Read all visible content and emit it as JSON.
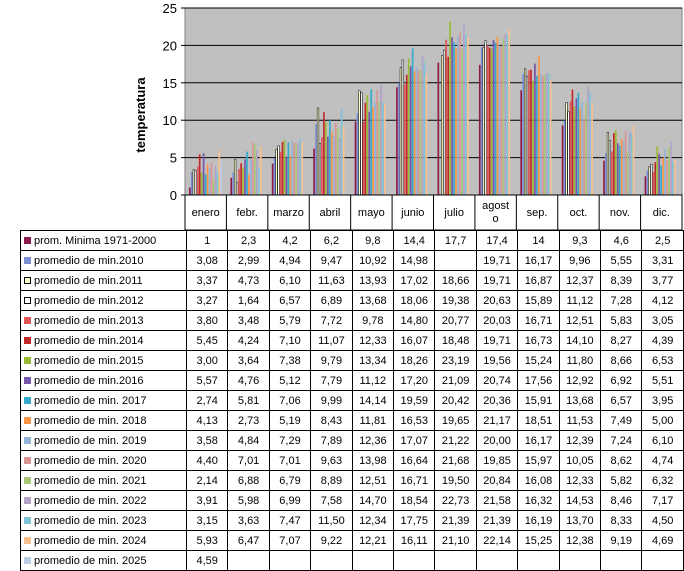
{
  "chart_data": {
    "type": "bar",
    "ylabel": "temperatura",
    "ylim": [
      0,
      25
    ],
    "yticks": [
      0,
      5,
      10,
      15,
      20,
      25
    ],
    "grid": true,
    "legend": "table-below",
    "categories": [
      "enero",
      "febr.",
      "marzo",
      "abril",
      "mayo",
      "junio",
      "julio",
      "agosto",
      "sep.",
      "oct.",
      "nov.",
      "dic."
    ],
    "series": [
      {
        "name": "prom. Minima 1971-2000",
        "color": "#8B1A4A",
        "values": [
          "1",
          "2,3",
          "4,2",
          "6,2",
          "9,8",
          "14,4",
          "17,7",
          "17,4",
          "14",
          "9,3",
          "4,6",
          "2,5"
        ]
      },
      {
        "name": "promedio de min.2010",
        "color": "#7B8FD6",
        "values": [
          "3,08",
          "2,99",
          "4,94",
          "9,47",
          "10,92",
          "14,98",
          "",
          "19,71",
          "16,17",
          "9,96",
          "5,55",
          "3,31"
        ]
      },
      {
        "name": "promedio de min.2011",
        "color": "#FFFFCC",
        "values": [
          "3,37",
          "4,73",
          "6,10",
          "11,63",
          "13,93",
          "17,02",
          "18,66",
          "19,71",
          "16,87",
          "12,37",
          "8,39",
          "3,77"
        ]
      },
      {
        "name": "promedio de min.2012",
        "color": "#FFFFFF",
        "values": [
          "3,27",
          "1,64",
          "6,57",
          "6,89",
          "13,68",
          "18,06",
          "19,38",
          "20,63",
          "15,89",
          "11,12",
          "7,28",
          "4,12"
        ]
      },
      {
        "name": "promedio de min.2013",
        "color": "#E05555",
        "values": [
          "3,80",
          "3,48",
          "5,79",
          "7,72",
          "9,78",
          "14,80",
          "20,77",
          "20,03",
          "16,71",
          "12,51",
          "5,83",
          "3,05"
        ]
      },
      {
        "name": "promedio de min.2014",
        "color": "#C0282A",
        "values": [
          "5,45",
          "4,24",
          "7,10",
          "11,07",
          "12,33",
          "16,07",
          "18,48",
          "19,71",
          "16,73",
          "14,10",
          "8,27",
          "4,39"
        ]
      },
      {
        "name": "promedio de min.2015",
        "color": "#99BB33",
        "values": [
          "3,00",
          "3,64",
          "7,38",
          "9,79",
          "13,34",
          "18,26",
          "23,19",
          "19,56",
          "15,24",
          "11,80",
          "8,66",
          "6,53"
        ]
      },
      {
        "name": "promedio de min.2016",
        "color": "#7755AA",
        "values": [
          "5,57",
          "4,76",
          "5,12",
          "7,79",
          "11,12",
          "17,20",
          "21,09",
          "20,74",
          "17,56",
          "12,92",
          "6,92",
          "5,51"
        ]
      },
      {
        "name": "promedio de min. 2017",
        "color": "#33AACC",
        "values": [
          "2,74",
          "5,81",
          "7,06",
          "9,99",
          "14,14",
          "19,59",
          "20,42",
          "20,36",
          "15,91",
          "13,68",
          "6,57",
          "3,95"
        ]
      },
      {
        "name": "promedio de min. 2018",
        "color": "#F79646",
        "values": [
          "4,13",
          "2,73",
          "5,19",
          "8,43",
          "11,81",
          "16,53",
          "19,65",
          "21,17",
          "18,51",
          "11,53",
          "7,49",
          "5,00"
        ]
      },
      {
        "name": "promedio de min. 2019",
        "color": "#95B3D7",
        "values": [
          "3,58",
          "4,84",
          "7,29",
          "7,89",
          "12,36",
          "17,07",
          "21,22",
          "20,00",
          "16,17",
          "12,39",
          "7,24",
          "6,10"
        ]
      },
      {
        "name": "promedio de min. 2020",
        "color": "#D99594",
        "values": [
          "4,40",
          "7,01",
          "7,01",
          "9,63",
          "13,98",
          "16,64",
          "21,68",
          "19,85",
          "15,97",
          "10,05",
          "8,62",
          "4,74"
        ]
      },
      {
        "name": "promedio de min. 2021",
        "color": "#A8C878",
        "values": [
          "2,14",
          "6,88",
          "6,79",
          "8,89",
          "12,51",
          "16,71",
          "19,50",
          "20,84",
          "16,08",
          "12,33",
          "5,82",
          "6,32"
        ]
      },
      {
        "name": "promedio de min. 2022",
        "color": "#B2A2C7",
        "values": [
          "3,91",
          "5,98",
          "6,99",
          "7,58",
          "14,70",
          "18,54",
          "22,73",
          "21,58",
          "16,32",
          "14,53",
          "8,46",
          "7,17"
        ]
      },
      {
        "name": "promedio de min. 2023",
        "color": "#7FC3D7",
        "values": [
          "3,15",
          "3,63",
          "7,47",
          "11,50",
          "12,34",
          "17,75",
          "21,39",
          "21,39",
          "16,19",
          "13,70",
          "8,33",
          "4,50"
        ]
      },
      {
        "name": "promedio de min. 2024",
        "color": "#FAC090",
        "values": [
          "5,93",
          "6,47",
          "7,07",
          "9,22",
          "12,21",
          "16,11",
          "21,10",
          "22,14",
          "15,25",
          "12,38",
          "9,19",
          "4,69"
        ]
      },
      {
        "name": "promedio de min. 2025",
        "color": "#B9CDE5",
        "values": [
          "4,59",
          "",
          "",
          "",
          "",
          "",
          "",
          "",
          "",
          "",
          "",
          ""
        ]
      }
    ]
  }
}
